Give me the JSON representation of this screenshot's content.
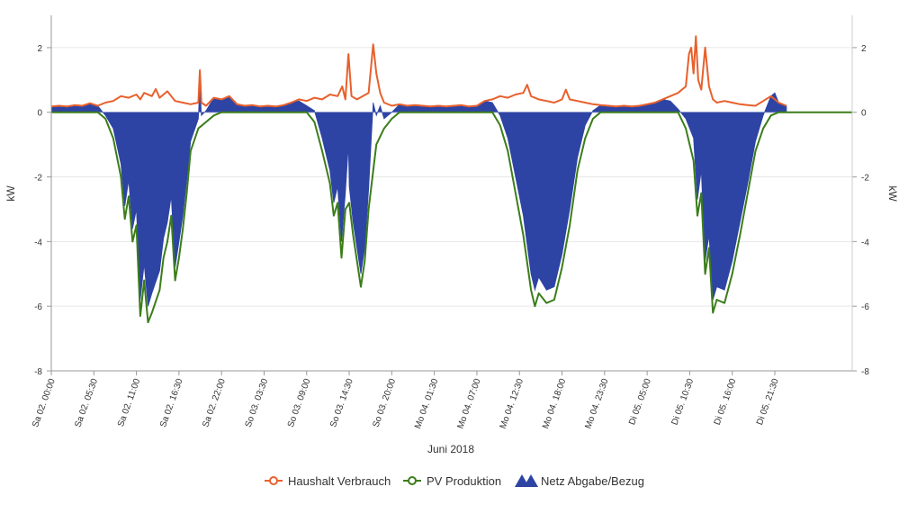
{
  "chart_data": {
    "type": "line",
    "xlabel": "Juni 2018",
    "ylabel_left": "kW",
    "ylabel_right": "kW",
    "ylim": [
      -8,
      3
    ],
    "yticks": [
      2,
      0,
      -2,
      -4,
      -6,
      -8
    ],
    "x_unit": "hours since Sa 02. 00:00",
    "xlim": [
      0,
      103.5
    ],
    "xticks": [
      {
        "label": "Sa 02. 00:00",
        "x": 0
      },
      {
        "label": "Sa 02. 05:30",
        "x": 5.5
      },
      {
        "label": "Sa 02. 11:00",
        "x": 11
      },
      {
        "label": "Sa 02. 16:30",
        "x": 16.5
      },
      {
        "label": "Sa 02. 22:00",
        "x": 22
      },
      {
        "label": "So 03. 03:30",
        "x": 27.5
      },
      {
        "label": "So 03. 09:00",
        "x": 33
      },
      {
        "label": "So 03. 14:30",
        "x": 38.5
      },
      {
        "label": "So 03. 20:00",
        "x": 44
      },
      {
        "label": "Mo 04. 01:30",
        "x": 49.5
      },
      {
        "label": "Mo 04. 07:00",
        "x": 55
      },
      {
        "label": "Mo 04. 12:30",
        "x": 60.5
      },
      {
        "label": "Mo 04. 18:00",
        "x": 66
      },
      {
        "label": "Mo 04. 23:30",
        "x": 71.5
      },
      {
        "label": "Di 05. 05:00",
        "x": 77
      },
      {
        "label": "Di 05. 10:30",
        "x": 82.5
      },
      {
        "label": "Di 05. 16:00",
        "x": 88
      },
      {
        "label": "Di 05. 21:30",
        "x": 93.5
      }
    ],
    "grid": true,
    "legend_position": "bottom-center",
    "series": [
      {
        "name": "Haushalt Verbrauch",
        "color": "#e8602c",
        "kind": "line",
        "points": [
          [
            0,
            0.18
          ],
          [
            1,
            0.2
          ],
          [
            2,
            0.18
          ],
          [
            3,
            0.22
          ],
          [
            4,
            0.2
          ],
          [
            5,
            0.28
          ],
          [
            6,
            0.2
          ],
          [
            7,
            0.3
          ],
          [
            8,
            0.35
          ],
          [
            9,
            0.5
          ],
          [
            10,
            0.45
          ],
          [
            11,
            0.55
          ],
          [
            11.5,
            0.4
          ],
          [
            12,
            0.6
          ],
          [
            13,
            0.5
          ],
          [
            13.5,
            0.72
          ],
          [
            14,
            0.45
          ],
          [
            15,
            0.65
          ],
          [
            16,
            0.35
          ],
          [
            17,
            0.3
          ],
          [
            18,
            0.25
          ],
          [
            19,
            0.3
          ],
          [
            19.2,
            1.3
          ],
          [
            19.4,
            0.3
          ],
          [
            20,
            0.2
          ],
          [
            21,
            0.45
          ],
          [
            22,
            0.4
          ],
          [
            23,
            0.5
          ],
          [
            24,
            0.25
          ],
          [
            25,
            0.2
          ],
          [
            26,
            0.22
          ],
          [
            27,
            0.18
          ],
          [
            28,
            0.2
          ],
          [
            29,
            0.18
          ],
          [
            30,
            0.22
          ],
          [
            31,
            0.3
          ],
          [
            32,
            0.4
          ],
          [
            33,
            0.35
          ],
          [
            34,
            0.45
          ],
          [
            35,
            0.4
          ],
          [
            36,
            0.55
          ],
          [
            37,
            0.5
          ],
          [
            37.6,
            0.8
          ],
          [
            38,
            0.4
          ],
          [
            38.4,
            1.8
          ],
          [
            38.8,
            0.5
          ],
          [
            39.5,
            0.4
          ],
          [
            41,
            0.6
          ],
          [
            41.6,
            2.1
          ],
          [
            42,
            1.2
          ],
          [
            42.5,
            0.6
          ],
          [
            43,
            0.3
          ],
          [
            44,
            0.2
          ],
          [
            45,
            0.25
          ],
          [
            46,
            0.2
          ],
          [
            47,
            0.22
          ],
          [
            48,
            0.2
          ],
          [
            49,
            0.18
          ],
          [
            50,
            0.2
          ],
          [
            51,
            0.18
          ],
          [
            52,
            0.2
          ],
          [
            53,
            0.22
          ],
          [
            54,
            0.18
          ],
          [
            55,
            0.2
          ],
          [
            56,
            0.35
          ],
          [
            57,
            0.4
          ],
          [
            58,
            0.5
          ],
          [
            59,
            0.45
          ],
          [
            60,
            0.55
          ],
          [
            61,
            0.6
          ],
          [
            61.5,
            0.85
          ],
          [
            62,
            0.5
          ],
          [
            63,
            0.4
          ],
          [
            64,
            0.35
          ],
          [
            65,
            0.3
          ],
          [
            66,
            0.4
          ],
          [
            66.5,
            0.7
          ],
          [
            67,
            0.4
          ],
          [
            68,
            0.35
          ],
          [
            69,
            0.3
          ],
          [
            70,
            0.25
          ],
          [
            71,
            0.22
          ],
          [
            72,
            0.2
          ],
          [
            73,
            0.18
          ],
          [
            74,
            0.2
          ],
          [
            75,
            0.18
          ],
          [
            76,
            0.2
          ],
          [
            77,
            0.25
          ],
          [
            78,
            0.3
          ],
          [
            79,
            0.4
          ],
          [
            80,
            0.5
          ],
          [
            81,
            0.6
          ],
          [
            82,
            0.8
          ],
          [
            82.4,
            1.8
          ],
          [
            82.7,
            2.0
          ],
          [
            83,
            1.2
          ],
          [
            83.3,
            2.35
          ],
          [
            83.6,
            1.0
          ],
          [
            84,
            0.7
          ],
          [
            84.5,
            2.0
          ],
          [
            85,
            0.8
          ],
          [
            85.5,
            0.4
          ],
          [
            86,
            0.3
          ],
          [
            87,
            0.35
          ],
          [
            88,
            0.3
          ],
          [
            89,
            0.25
          ],
          [
            90,
            0.22
          ],
          [
            91,
            0.2
          ],
          [
            92,
            0.35
          ],
          [
            93,
            0.5
          ],
          [
            94,
            0.3
          ],
          [
            95,
            0.2
          ]
        ]
      },
      {
        "name": "PV Produktion",
        "color": "#3b7d1a",
        "kind": "line",
        "points": [
          [
            0,
            0
          ],
          [
            6,
            0
          ],
          [
            7,
            -0.2
          ],
          [
            8,
            -0.8
          ],
          [
            9,
            -2.0
          ],
          [
            9.5,
            -3.3
          ],
          [
            10,
            -2.6
          ],
          [
            10.5,
            -4.0
          ],
          [
            11,
            -3.5
          ],
          [
            11.5,
            -6.3
          ],
          [
            12,
            -5.2
          ],
          [
            12.5,
            -6.5
          ],
          [
            13,
            -6.2
          ],
          [
            14,
            -5.5
          ],
          [
            14.5,
            -4.5
          ],
          [
            15,
            -4.0
          ],
          [
            15.5,
            -3.2
          ],
          [
            16,
            -5.2
          ],
          [
            16.5,
            -4.5
          ],
          [
            17,
            -3.6
          ],
          [
            17.5,
            -2.5
          ],
          [
            18,
            -1.2
          ],
          [
            19,
            -0.5
          ],
          [
            20,
            -0.3
          ],
          [
            21,
            -0.1
          ],
          [
            22,
            0
          ],
          [
            33,
            0
          ],
          [
            34,
            -0.3
          ],
          [
            35,
            -1.2
          ],
          [
            36,
            -2.2
          ],
          [
            36.5,
            -3.2
          ],
          [
            37,
            -2.8
          ],
          [
            37.5,
            -4.5
          ],
          [
            38,
            -3.0
          ],
          [
            38.5,
            -2.8
          ],
          [
            39,
            -3.8
          ],
          [
            40,
            -5.4
          ],
          [
            40.5,
            -4.6
          ],
          [
            41,
            -3.0
          ],
          [
            41.5,
            -2.0
          ],
          [
            42,
            -1.0
          ],
          [
            43,
            -0.5
          ],
          [
            44,
            -0.2
          ],
          [
            45,
            0
          ],
          [
            57,
            0
          ],
          [
            58,
            -0.4
          ],
          [
            59,
            -1.2
          ],
          [
            60,
            -2.5
          ],
          [
            61,
            -3.8
          ],
          [
            62,
            -5.5
          ],
          [
            62.5,
            -6.0
          ],
          [
            63,
            -5.6
          ],
          [
            64,
            -5.9
          ],
          [
            65,
            -5.8
          ],
          [
            66,
            -4.8
          ],
          [
            67,
            -3.5
          ],
          [
            68,
            -1.8
          ],
          [
            69,
            -0.8
          ],
          [
            70,
            -0.2
          ],
          [
            71,
            0
          ],
          [
            81,
            0
          ],
          [
            82,
            -0.5
          ],
          [
            83,
            -1.5
          ],
          [
            83.5,
            -3.2
          ],
          [
            84,
            -2.5
          ],
          [
            84.5,
            -5.0
          ],
          [
            85,
            -4.2
          ],
          [
            85.5,
            -6.2
          ],
          [
            86,
            -5.8
          ],
          [
            87,
            -5.9
          ],
          [
            88,
            -5.0
          ],
          [
            89,
            -3.8
          ],
          [
            90,
            -2.5
          ],
          [
            91,
            -1.2
          ],
          [
            92,
            -0.5
          ],
          [
            93,
            -0.1
          ],
          [
            94,
            0
          ],
          [
            103.5,
            0
          ]
        ]
      },
      {
        "name": "Netz Abgabe/Bezug",
        "color": "#2e44a4",
        "kind": "area",
        "points": [
          [
            0,
            0.18
          ],
          [
            1,
            0.2
          ],
          [
            2,
            0.18
          ],
          [
            3,
            0.22
          ],
          [
            4,
            0.2
          ],
          [
            5,
            0.28
          ],
          [
            6,
            0.2
          ],
          [
            6.5,
            0.05
          ],
          [
            7,
            -0.1
          ],
          [
            8,
            -0.5
          ],
          [
            9,
            -1.6
          ],
          [
            9.5,
            -2.9
          ],
          [
            10,
            -2.1
          ],
          [
            10.5,
            -3.6
          ],
          [
            11,
            -3.0
          ],
          [
            11.5,
            -5.8
          ],
          [
            12,
            -4.7
          ],
          [
            12.5,
            -6.0
          ],
          [
            13,
            -5.6
          ],
          [
            14,
            -4.9
          ],
          [
            14.5,
            -3.9
          ],
          [
            15,
            -3.4
          ],
          [
            15.5,
            -2.6
          ],
          [
            16,
            -4.8
          ],
          [
            16.5,
            -4.0
          ],
          [
            17,
            -3.2
          ],
          [
            17.5,
            -2.1
          ],
          [
            18,
            -0.9
          ],
          [
            19,
            -0.2
          ],
          [
            19.2,
            1.0
          ],
          [
            19.4,
            -0.1
          ],
          [
            20,
            0.05
          ],
          [
            21,
            0.45
          ],
          [
            22,
            0.4
          ],
          [
            23,
            0.5
          ],
          [
            24,
            0.25
          ],
          [
            25,
            0.2
          ],
          [
            26,
            0.22
          ],
          [
            27,
            0.18
          ],
          [
            28,
            0.2
          ],
          [
            29,
            0.18
          ],
          [
            30,
            0.22
          ],
          [
            31,
            0.3
          ],
          [
            32,
            0.35
          ],
          [
            33,
            0.2
          ],
          [
            34,
            0.05
          ],
          [
            35,
            -0.8
          ],
          [
            36,
            -1.8
          ],
          [
            36.5,
            -2.8
          ],
          [
            37,
            -2.3
          ],
          [
            37.5,
            -4.0
          ],
          [
            38,
            -2.5
          ],
          [
            38.4,
            -1.0
          ],
          [
            38.5,
            -2.3
          ],
          [
            39,
            -3.4
          ],
          [
            40,
            -5.0
          ],
          [
            40.5,
            -4.2
          ],
          [
            41,
            -2.4
          ],
          [
            41.6,
            0.3
          ],
          [
            42,
            -0.1
          ],
          [
            42.5,
            0.2
          ],
          [
            43,
            -0.2
          ],
          [
            44,
            0.0
          ],
          [
            45,
            0.25
          ],
          [
            46,
            0.2
          ],
          [
            47,
            0.22
          ],
          [
            48,
            0.2
          ],
          [
            49,
            0.18
          ],
          [
            50,
            0.2
          ],
          [
            51,
            0.18
          ],
          [
            52,
            0.2
          ],
          [
            53,
            0.22
          ],
          [
            54,
            0.18
          ],
          [
            55,
            0.2
          ],
          [
            56,
            0.35
          ],
          [
            57,
            0.3
          ],
          [
            58,
            -0.1
          ],
          [
            59,
            -0.8
          ],
          [
            60,
            -2.0
          ],
          [
            61,
            -3.2
          ],
          [
            62,
            -5.0
          ],
          [
            62.5,
            -5.5
          ],
          [
            63,
            -5.1
          ],
          [
            64,
            -5.5
          ],
          [
            65,
            -5.4
          ],
          [
            66,
            -4.4
          ],
          [
            67,
            -3.0
          ],
          [
            68,
            -1.4
          ],
          [
            69,
            -0.4
          ],
          [
            70,
            0.05
          ],
          [
            71,
            0.22
          ],
          [
            72,
            0.2
          ],
          [
            73,
            0.18
          ],
          [
            74,
            0.2
          ],
          [
            75,
            0.18
          ],
          [
            76,
            0.2
          ],
          [
            77,
            0.25
          ],
          [
            78,
            0.3
          ],
          [
            79,
            0.4
          ],
          [
            80,
            0.35
          ],
          [
            81,
            0.1
          ],
          [
            82,
            -0.2
          ],
          [
            83,
            -0.8
          ],
          [
            83.5,
            -2.7
          ],
          [
            84,
            -1.8
          ],
          [
            84.5,
            -4.6
          ],
          [
            85,
            -3.8
          ],
          [
            85.5,
            -5.8
          ],
          [
            86,
            -5.4
          ],
          [
            87,
            -5.5
          ],
          [
            88,
            -4.6
          ],
          [
            89,
            -3.4
          ],
          [
            90,
            -2.2
          ],
          [
            91,
            -0.9
          ],
          [
            92,
            -0.1
          ],
          [
            93,
            0.5
          ],
          [
            93.5,
            0.6
          ],
          [
            94,
            0.3
          ],
          [
            95,
            0.2
          ]
        ]
      }
    ]
  }
}
